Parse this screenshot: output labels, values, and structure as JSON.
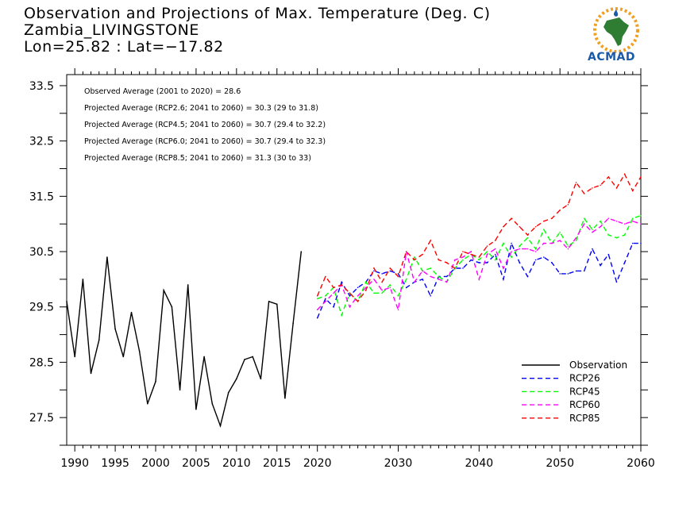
{
  "header": {
    "title_line1": "Observation and Projections of Max. Temperature (Deg. C)",
    "title_line2": "Zambia_LIVINGSTONE",
    "title_line3": "Lon=25.82 : Lat=−17.82"
  },
  "logo": {
    "text": "ACMAD"
  },
  "chart_data": {
    "type": "line",
    "title": "Observation and Projections of Max. Temperature (Deg. C)",
    "xlim": [
      1989,
      2060
    ],
    "ylim": [
      27,
      33.7
    ],
    "y_ticks": [
      27.5,
      28.5,
      29.5,
      30.5,
      31.5,
      32.5,
      33.5
    ],
    "x_ticks": [
      1990,
      1995,
      2000,
      2005,
      2010,
      2015,
      2020,
      2030,
      2040,
      2050,
      2060
    ],
    "annotations": [
      "Observed Average (2001 to 2020) = 28.6",
      "Projected Average (RCP2.6; 2041 to 2060) = 30.3 (29 to 31.8)",
      "Projected Average (RCP4.5; 2041 to 2060) = 30.7 (29.4 to 32.2)",
      "Projected Average (RCP6.0; 2041 to 2060) = 30.7 (29.4 to 32.3)",
      "Projected Average (RCP8.5; 2041 to 2060) = 31.3 (30 to 33)"
    ],
    "legend_position": "bottom-right",
    "series": [
      {
        "name": "Observation",
        "color": "#000000",
        "dashed": false,
        "x": [
          1989,
          1990,
          1991,
          1992,
          1993,
          1994,
          1995,
          1996,
          1997,
          1998,
          1999,
          2000,
          2001,
          2002,
          2003,
          2004,
          2005,
          2006,
          2007,
          2008,
          2009,
          2010,
          2011,
          2012,
          2013,
          2014,
          2015,
          2016,
          2017,
          2018
        ],
        "values": [
          29.6,
          28.6,
          30.0,
          28.3,
          28.9,
          30.4,
          29.1,
          28.6,
          29.4,
          28.7,
          27.75,
          28.15,
          29.8,
          29.5,
          28.0,
          29.9,
          27.65,
          28.6,
          27.75,
          27.35,
          27.95,
          28.2,
          28.55,
          28.6,
          28.2,
          29.6,
          29.55,
          27.85,
          29.2,
          30.5
        ]
      },
      {
        "name": "RCP26",
        "color": "#0000ff",
        "dashed": true,
        "x": [
          2020,
          2021,
          2022,
          2023,
          2024,
          2025,
          2026,
          2027,
          2028,
          2029,
          2030,
          2031,
          2032,
          2033,
          2034,
          2035,
          2036,
          2037,
          2038,
          2039,
          2040,
          2041,
          2042,
          2043,
          2044,
          2045,
          2046,
          2047,
          2048,
          2049,
          2050,
          2051,
          2052,
          2053,
          2054,
          2055,
          2056,
          2057,
          2058,
          2059,
          2060
        ],
        "values": [
          29.3,
          29.65,
          29.5,
          29.95,
          29.7,
          29.85,
          29.95,
          30.15,
          30.1,
          30.15,
          30.1,
          29.85,
          29.95,
          30.0,
          29.7,
          30.05,
          30.05,
          30.2,
          30.2,
          30.35,
          30.3,
          30.3,
          30.45,
          30.0,
          30.65,
          30.3,
          30.05,
          30.35,
          30.4,
          30.3,
          30.1,
          30.1,
          30.15,
          30.15,
          30.55,
          30.25,
          30.45,
          29.95,
          30.3,
          30.65,
          30.65
        ]
      },
      {
        "name": "RCP45",
        "color": "#00ff00",
        "dashed": true,
        "x": [
          2020,
          2021,
          2022,
          2023,
          2024,
          2025,
          2026,
          2027,
          2028,
          2029,
          2030,
          2031,
          2032,
          2033,
          2034,
          2035,
          2036,
          2037,
          2038,
          2039,
          2040,
          2041,
          2042,
          2043,
          2044,
          2045,
          2046,
          2047,
          2048,
          2049,
          2050,
          2051,
          2052,
          2053,
          2054,
          2055,
          2056,
          2057,
          2058,
          2059,
          2060
        ],
        "values": [
          29.65,
          29.7,
          29.85,
          29.35,
          29.75,
          29.6,
          29.95,
          29.75,
          29.75,
          29.9,
          29.7,
          30.0,
          30.4,
          30.15,
          30.2,
          30.05,
          29.95,
          30.2,
          30.35,
          30.45,
          30.35,
          30.5,
          30.35,
          30.65,
          30.4,
          30.6,
          30.75,
          30.55,
          30.9,
          30.65,
          30.85,
          30.6,
          30.7,
          31.1,
          30.9,
          31.05,
          30.8,
          30.75,
          30.8,
          31.1,
          31.15
        ]
      },
      {
        "name": "RCP60",
        "color": "#ff00ff",
        "dashed": true,
        "x": [
          2020,
          2021,
          2022,
          2023,
          2024,
          2025,
          2026,
          2027,
          2028,
          2029,
          2030,
          2031,
          2032,
          2033,
          2034,
          2035,
          2036,
          2037,
          2038,
          2039,
          2040,
          2041,
          2042,
          2043,
          2044,
          2045,
          2046,
          2047,
          2048,
          2049,
          2050,
          2051,
          2052,
          2053,
          2054,
          2055,
          2056,
          2057,
          2058,
          2059,
          2060
        ],
        "values": [
          29.45,
          29.6,
          29.75,
          29.9,
          29.5,
          29.7,
          29.85,
          30.0,
          29.8,
          29.85,
          29.45,
          30.5,
          29.95,
          30.15,
          30.05,
          30.0,
          29.95,
          30.35,
          30.4,
          30.5,
          30.0,
          30.45,
          30.55,
          30.2,
          30.5,
          30.55,
          30.55,
          30.5,
          30.65,
          30.65,
          30.7,
          30.55,
          30.75,
          31.0,
          30.85,
          30.95,
          31.1,
          31.05,
          31.0,
          31.05,
          31.0
        ]
      },
      {
        "name": "RCP85",
        "color": "#ff0000",
        "dashed": true,
        "x": [
          2020,
          2021,
          2022,
          2023,
          2024,
          2025,
          2026,
          2027,
          2028,
          2029,
          2030,
          2031,
          2032,
          2033,
          2034,
          2035,
          2036,
          2037,
          2038,
          2039,
          2040,
          2041,
          2042,
          2043,
          2044,
          2045,
          2046,
          2047,
          2048,
          2049,
          2050,
          2051,
          2052,
          2053,
          2054,
          2055,
          2056,
          2057,
          2058,
          2059,
          2060
        ],
        "values": [
          29.7,
          30.05,
          29.85,
          29.9,
          29.75,
          29.6,
          29.8,
          30.2,
          29.95,
          30.2,
          30.05,
          30.5,
          30.35,
          30.45,
          30.7,
          30.35,
          30.3,
          30.2,
          30.5,
          30.45,
          30.4,
          30.6,
          30.7,
          30.95,
          31.1,
          30.95,
          30.8,
          30.95,
          31.05,
          31.1,
          31.25,
          31.35,
          31.75,
          31.55,
          31.65,
          31.7,
          31.85,
          31.65,
          31.9,
          31.6,
          31.85
        ]
      }
    ]
  }
}
